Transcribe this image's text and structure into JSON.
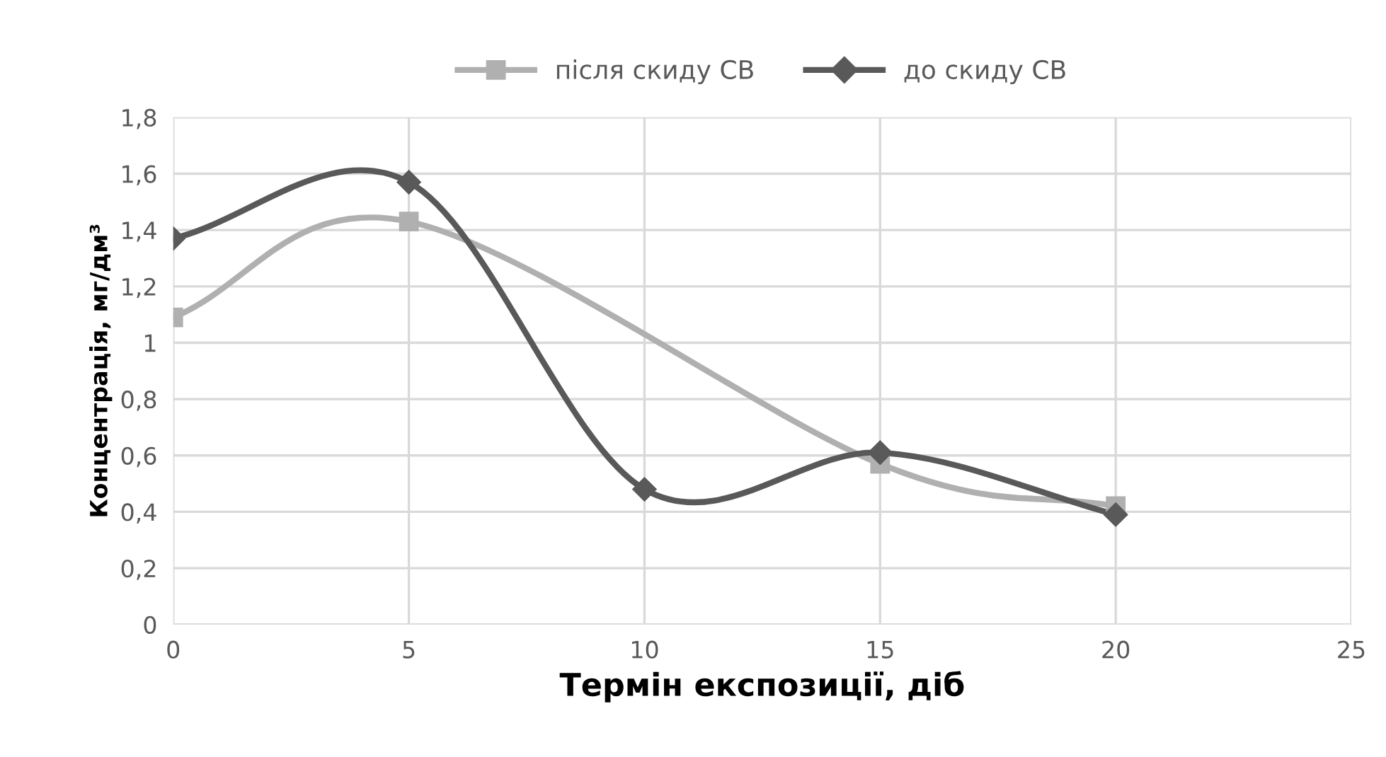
{
  "chart_data": {
    "type": "line",
    "xlabel": "Термін експозиції, діб",
    "ylabel": "Концентрація, мг/дм³",
    "xlim": [
      0,
      25
    ],
    "xticks": [
      0,
      5,
      10,
      15,
      20,
      25
    ],
    "ylim": [
      0,
      1.8
    ],
    "yticks": [
      0,
      {
        "value": 0.2,
        "label": "0,2"
      },
      {
        "value": 0.4,
        "label": "0,4"
      },
      {
        "value": 0.6,
        "label": "0,6"
      },
      {
        "value": 0.8,
        "label": "0,8"
      },
      1,
      {
        "value": 1.2,
        "label": "1,2"
      },
      {
        "value": 1.4,
        "label": "1,4"
      },
      {
        "value": 1.6,
        "label": "1,6"
      },
      {
        "value": 1.8,
        "label": "1,8"
      }
    ],
    "grid": true,
    "legend": "top",
    "line_style": "solid",
    "series": [
      {
        "name": "після скиду СВ",
        "color": "#b0b0b0",
        "marker": "square",
        "x": [
          0,
          5,
          15,
          20
        ],
        "values": [
          1.09,
          1.43,
          0.57,
          0.42
        ]
      },
      {
        "name": "до скиду СВ",
        "color": "#595959",
        "marker": "diamond",
        "x": [
          0,
          5,
          10,
          15,
          20
        ],
        "values": [
          1.37,
          1.57,
          0.48,
          0.61,
          0.39
        ]
      }
    ]
  }
}
